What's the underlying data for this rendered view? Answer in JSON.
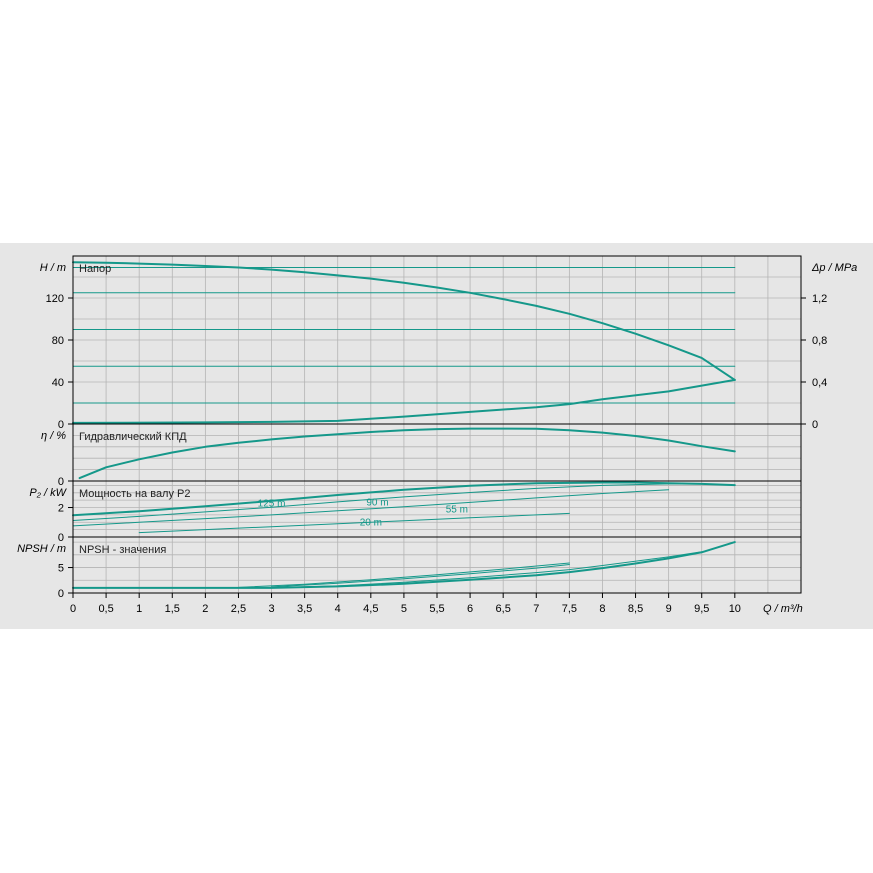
{
  "chart_data": [
    {
      "type": "line",
      "title": "Напор",
      "y_axis_label": "H / m",
      "y2_axis_label": "Δp / MPa",
      "ylim": [
        0,
        160
      ],
      "yticks": [
        0,
        40,
        80,
        120
      ],
      "y2ticks": [
        "0",
        "0,4",
        "0,8",
        "1,2"
      ],
      "series": [
        {
          "role": "main",
          "x": [
            0,
            0.5,
            1,
            1.5,
            2,
            2.5,
            3,
            3.5,
            4,
            4.5,
            5,
            5.5,
            6,
            6.5,
            7,
            7.5,
            8,
            8.5,
            9,
            9.5,
            10
          ],
          "values": [
            154,
            153.6,
            152.8,
            151.8,
            150.5,
            149,
            147,
            144.5,
            141.5,
            138.5,
            134.5,
            130,
            125,
            119,
            112.5,
            105,
            96,
            86,
            75,
            63,
            42
          ]
        },
        {
          "role": "level",
          "x": [
            0,
            10
          ],
          "values": [
            149,
            149
          ]
        },
        {
          "role": "level",
          "x": [
            0,
            10
          ],
          "values": [
            125,
            125
          ]
        },
        {
          "role": "level",
          "x": [
            0,
            10
          ],
          "values": [
            90,
            90
          ]
        },
        {
          "role": "level",
          "x": [
            0,
            10
          ],
          "values": [
            55,
            55
          ]
        },
        {
          "role": "level",
          "x": [
            0,
            10
          ],
          "values": [
            20,
            20
          ]
        },
        {
          "role": "system",
          "x": [
            0,
            2,
            3,
            4,
            5,
            6,
            7,
            7.5,
            8,
            9,
            10
          ],
          "values": [
            1,
            1.5,
            2,
            3,
            7,
            11.5,
            16,
            19,
            23.5,
            31,
            42
          ]
        }
      ]
    },
    {
      "type": "line",
      "title": "Гидравлический КПД",
      "y_axis_label": "η / %",
      "ylim": [
        0,
        100
      ],
      "yticks": [
        0
      ],
      "series": [
        {
          "role": "main",
          "x": [
            0.1,
            0.5,
            1,
            1.5,
            2,
            2.5,
            3,
            3.5,
            4,
            4.5,
            5,
            5.5,
            6,
            6.5,
            7,
            7.5,
            8,
            8.5,
            9,
            9.5,
            10
          ],
          "values": [
            5,
            24,
            38,
            50,
            60,
            67,
            73,
            78,
            82,
            86,
            89,
            91,
            92,
            92,
            91.5,
            89,
            85,
            79,
            71,
            61,
            52
          ]
        }
      ]
    },
    {
      "type": "line",
      "title": "Мощность на валу P2",
      "y_axis_label": "P₂ / kW",
      "ylim": [
        0,
        3.8
      ],
      "yticks": [
        0,
        2
      ],
      "series": [
        {
          "name": "125 m",
          "x": [
            0,
            1,
            2,
            3,
            4,
            5,
            6,
            7,
            8,
            8.5,
            9,
            9.5,
            10
          ],
          "values": [
            1.48,
            1.75,
            2.08,
            2.45,
            2.85,
            3.2,
            3.48,
            3.65,
            3.7,
            3.7,
            3.65,
            3.6,
            3.52
          ]
        },
        {
          "name": "90 m",
          "x": [
            0,
            1,
            2,
            3,
            4,
            5,
            6,
            7,
            8,
            9,
            9.5
          ],
          "values": [
            1.12,
            1.4,
            1.7,
            2.02,
            2.38,
            2.72,
            3.02,
            3.3,
            3.5,
            3.6,
            3.62
          ]
        },
        {
          "name": "55 m",
          "x": [
            0,
            1,
            2,
            3,
            4,
            5,
            6,
            7,
            8,
            9
          ],
          "values": [
            0.75,
            1.0,
            1.25,
            1.5,
            1.78,
            2.05,
            2.35,
            2.65,
            2.95,
            3.2
          ]
        },
        {
          "name": "20 m",
          "x": [
            1,
            2,
            3,
            4,
            5,
            6,
            7,
            7.5
          ],
          "values": [
            0.3,
            0.5,
            0.7,
            0.9,
            1.1,
            1.3,
            1.5,
            1.6
          ]
        }
      ],
      "curve_labels": [
        "125 m",
        "90 m",
        "55 m",
        "20 m"
      ]
    },
    {
      "type": "line",
      "title": "NPSH - значения",
      "y_axis_label": "NPSH / m",
      "ylim": [
        0,
        11
      ],
      "yticks": [
        0,
        5
      ],
      "xlabel": "Q / m³/h",
      "xlim": [
        0,
        10
      ],
      "xticks": [
        "0",
        "0,5",
        "1",
        "1,5",
        "2",
        "2,5",
        "3",
        "3,5",
        "4",
        "4,5",
        "5",
        "5,5",
        "6",
        "6,5",
        "7",
        "7,5",
        "8",
        "8,5",
        "9",
        "9,5",
        "10"
      ],
      "series": [
        {
          "role": "main",
          "x": [
            0,
            1,
            2,
            3,
            4,
            5,
            6,
            7,
            7.5,
            8,
            8.5,
            9,
            9.5,
            10
          ],
          "values": [
            1,
            1,
            1,
            1,
            1.3,
            1.8,
            2.6,
            3.5,
            4.1,
            4.9,
            5.8,
            6.8,
            8,
            10
          ]
        },
        {
          "role": "variant",
          "x": [
            0,
            1,
            2,
            3,
            4,
            5,
            6,
            7,
            7.5,
            8,
            9,
            9.5
          ],
          "values": [
            1,
            1,
            1,
            1,
            1.4,
            2.1,
            3,
            4,
            4.6,
            5.4,
            7.1,
            8.1
          ]
        },
        {
          "role": "variant",
          "x": [
            3,
            4,
            5,
            6,
            7,
            7.5
          ],
          "values": [
            1.2,
            1.9,
            2.8,
            3.8,
            4.9,
            5.6
          ]
        },
        {
          "role": "variant",
          "x": [
            2.5,
            3.5,
            4.5,
            5.5,
            6.5,
            7.5
          ],
          "values": [
            1.1,
            1.7,
            2.6,
            3.6,
            4.7,
            5.9
          ]
        }
      ]
    }
  ]
}
